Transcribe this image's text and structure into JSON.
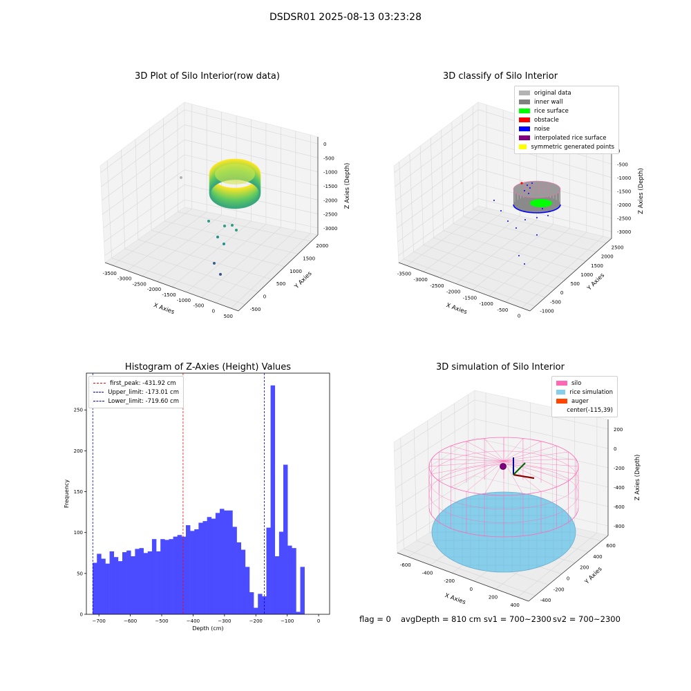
{
  "figure": {
    "suptitle": "DSDSR01 2025-08-13 03:23:28"
  },
  "colors": {
    "pane": "#f3f3f3",
    "grid": "#d7d7d7",
    "hist_bar": "#4b4bff",
    "peak_line": "#ff0000",
    "limit_line": "#0000cc",
    "original": "#b3b3b3",
    "inner_wall": "#808080",
    "rice_surface": "#00ff00",
    "obstacle": "#ff0000",
    "noise": "#0000ff",
    "interp": "#800080",
    "symmetric": "#ffff00",
    "silo": "#ff69b4",
    "rice_sim": "#87ceeb",
    "auger": "#ff4500"
  },
  "status": {
    "flag": "flag = 0",
    "avg": "avgDepth = 810 cm",
    "sv1": "sv1 = 700~2300",
    "sv2": "sv2 = 700~2300"
  },
  "chart_data": [
    {
      "type": "scatter",
      "title": "3D Plot of Silo Interior(row data)",
      "xlabel": "X Axies",
      "ylabel": "Y Axies",
      "zlabel": "Z Axies (Depth)",
      "x_ticks": [
        "-3500",
        "-3000",
        "-2500",
        "-2000",
        "-1500",
        "-1000",
        "-500",
        "0",
        "500"
      ],
      "y_ticks": [
        "-500",
        "0",
        "500",
        "1000",
        "1500",
        "2000"
      ],
      "z_ticks": [
        "0",
        "-500",
        "-1000",
        "-1500",
        "-2000",
        "-2500",
        "-3000"
      ],
      "colormap": "viridis"
    },
    {
      "type": "scatter",
      "title": "3D classify of Silo Interior",
      "xlabel": "X Axies",
      "ylabel": "Y Axies",
      "zlabel": "Z Axies (Depth)",
      "x_ticks": [
        "-3500",
        "-3000",
        "-2500",
        "-2000",
        "-1500",
        "-1000",
        "-500",
        "0"
      ],
      "y_ticks": [
        "-1000",
        "-500",
        "0",
        "500",
        "1000",
        "1500",
        "2000",
        "2500"
      ],
      "z_ticks": [
        "0",
        "-500",
        "-1000",
        "-1500",
        "-2000",
        "-2500",
        "-3000"
      ],
      "legend": [
        "original data",
        "inner wall",
        "rice surface",
        "obstacle",
        "noise",
        "interpolated rice surface",
        "symmetric generated points"
      ],
      "legend_position": "top-right"
    },
    {
      "type": "bar",
      "title": "Histogram of Z-Axies (Height) Values",
      "xlabel": "Depth (cm)",
      "ylabel": "Frequency",
      "xlim": [
        -740,
        35
      ],
      "ylim": [
        0,
        295
      ],
      "x_ticks": [
        -700,
        -600,
        -500,
        -400,
        -300,
        -200,
        -100,
        0
      ],
      "y_ticks": [
        0,
        50,
        100,
        150,
        200,
        250
      ],
      "bin_start": -720,
      "bin_width": 13.5,
      "values": [
        63,
        74,
        68,
        62,
        77,
        70,
        65,
        76,
        78,
        71,
        80,
        81,
        75,
        77,
        92,
        77,
        92,
        91,
        92,
        95,
        97,
        95,
        109,
        102,
        104,
        112,
        114,
        119,
        117,
        124,
        129,
        127,
        127,
        107,
        88,
        79,
        58,
        27,
        8,
        25,
        22,
        106,
        280,
        71,
        101,
        183,
        84,
        81,
        3,
        58
      ],
      "lines": [
        {
          "label": "first_peak: -431.92 cm",
          "x": -431.92,
          "style": "red"
        },
        {
          "label": "Upper_limit: -173.01 cm",
          "x": -173.01,
          "style": "blue"
        },
        {
          "label": "Lower_limit: -719.60 cm",
          "x": -719.6,
          "style": "blue"
        }
      ],
      "legend_position": "top-left",
      "grid": false
    },
    {
      "type": "scatter",
      "title": "3D simulation of Silo Interior",
      "xlabel": "X Axies",
      "ylabel": "Y Axies",
      "zlabel": "Z Axies (Depth)",
      "x_ticks": [
        "-600",
        "-400",
        "-200",
        "0",
        "200",
        "400"
      ],
      "y_ticks": [
        "-400",
        "-200",
        "0",
        "200",
        "400",
        "600"
      ],
      "z_ticks": [
        "200",
        "0",
        "-200",
        "-400",
        "-600",
        "-800"
      ],
      "legend": [
        "silo",
        "rice simulation",
        "auger",
        "center(-115,39)"
      ],
      "legend_position": "top-right"
    }
  ]
}
